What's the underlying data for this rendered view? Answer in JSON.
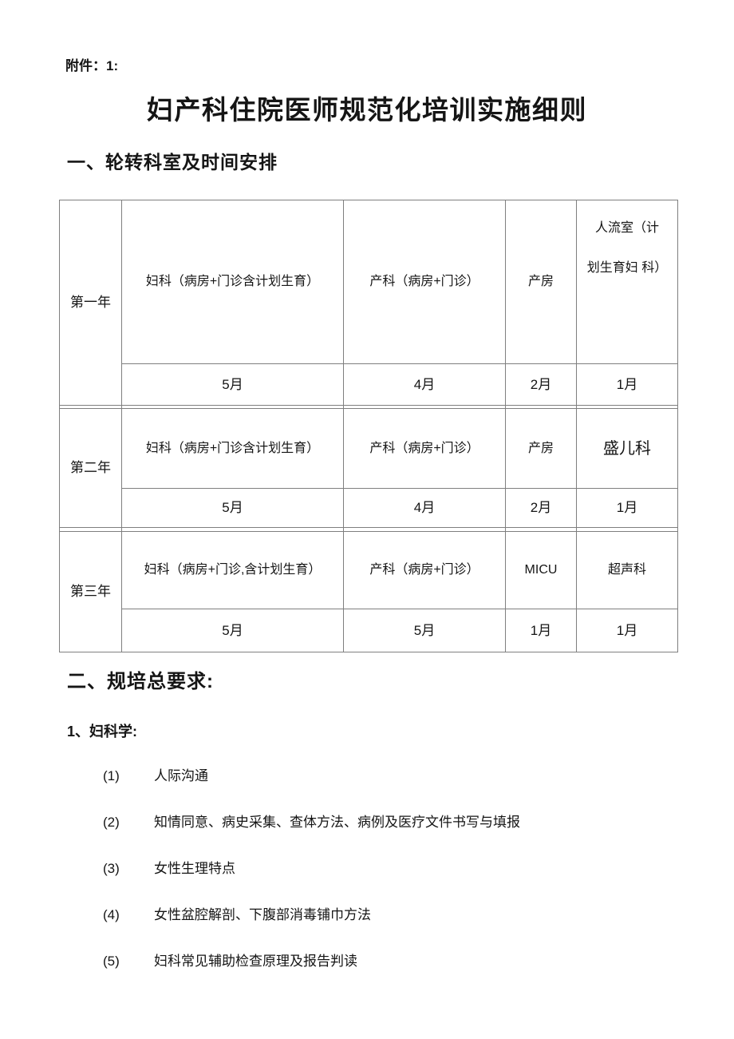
{
  "page": {
    "attachment_label": "附件：1:",
    "title": "妇产科住院医师规范化培训实施细则"
  },
  "sections": {
    "rotation_heading": "一、轮转科室及时间安排",
    "requirements_heading": "二、规培总要求:",
    "gynecology_subheading": "1、妇科学:"
  },
  "rotation_table": {
    "years": [
      {
        "label": "第一年",
        "departments": [
          "妇科（病房+门诊含计划生育）",
          "产科（病房+门诊）",
          "产房",
          "人流室（计\n划生育妇 科）"
        ],
        "months": [
          "5月",
          "4月",
          "2月",
          "1月"
        ]
      },
      {
        "label": "第二年",
        "departments": [
          "妇科（病房+门诊含计划生育）",
          "产科（病房+门诊）",
          "产房",
          "盛儿科"
        ],
        "months": [
          "5月",
          "4月",
          "2月",
          "1月"
        ]
      },
      {
        "label": "第三年",
        "departments": [
          "妇科（病房+门诊,含计划生育）",
          "产科（病房+门诊）",
          "MICU",
          "超声科"
        ],
        "months": [
          "5月",
          "5月",
          "1月",
          "1月"
        ]
      }
    ]
  },
  "requirements_list": {
    "items": [
      {
        "number": "(1)",
        "text": "人际沟通"
      },
      {
        "number": "(2)",
        "text": "知情同意、病史采集、查体方法、病例及医疗文件书写与填报"
      },
      {
        "number": "(3)",
        "text": "女性生理特点"
      },
      {
        "number": "(4)",
        "text": "女性盆腔解剖、下腹部消毒铺巾方法"
      },
      {
        "number": "(5)",
        "text": "妇科常见辅助检查原理及报告判读"
      }
    ]
  }
}
